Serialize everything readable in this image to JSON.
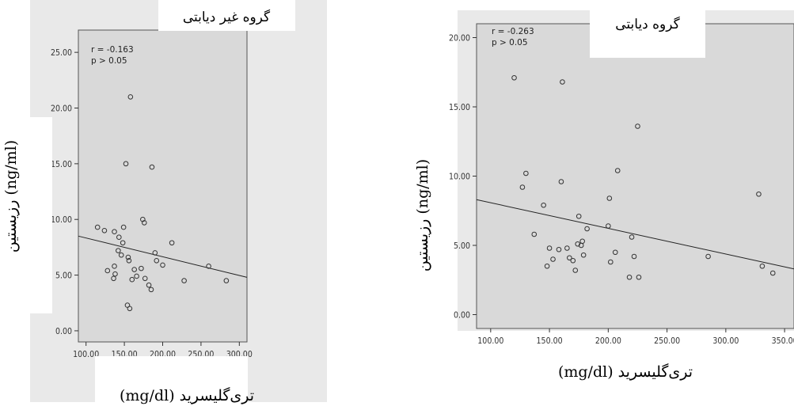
{
  "chart_data": [
    {
      "type": "scatter",
      "title": "گروه غیر دیابتی",
      "xlabel": "تری‌گلیسرید (mg/dl)",
      "ylabel": "رزیستین (ng/ml)",
      "stats": {
        "r": "r = -0.163",
        "p": "p > 0.05"
      },
      "xlim": [
        90,
        310
      ],
      "ylim": [
        -1,
        27
      ],
      "xticks": [
        "100.00",
        "150.00",
        "200.00",
        "250.00",
        "300.00"
      ],
      "yticks": [
        "0.00",
        "5.00",
        "10.00",
        "15.00",
        "20.00",
        "25.00"
      ],
      "xtick_values": [
        100,
        150,
        200,
        250,
        300
      ],
      "ytick_values": [
        0,
        5,
        10,
        15,
        20,
        25
      ],
      "fit_line": {
        "x": [
          90,
          310
        ],
        "y": [
          8.5,
          4.8
        ]
      },
      "points": [
        [
          115,
          9.3
        ],
        [
          124,
          9.0
        ],
        [
          128,
          5.4
        ],
        [
          136,
          4.7
        ],
        [
          137,
          8.9
        ],
        [
          137,
          5.8
        ],
        [
          138,
          5.1
        ],
        [
          142,
          7.2
        ],
        [
          143,
          8.4
        ],
        [
          146,
          6.8
        ],
        [
          148,
          7.9
        ],
        [
          149,
          9.3
        ],
        [
          152,
          15.0
        ],
        [
          154,
          2.3
        ],
        [
          155,
          6.6
        ],
        [
          156,
          6.3
        ],
        [
          157,
          2.0
        ],
        [
          158,
          21.0
        ],
        [
          160,
          4.6
        ],
        [
          163,
          5.5
        ],
        [
          166,
          4.9
        ],
        [
          172,
          5.6
        ],
        [
          174,
          10.0
        ],
        [
          176,
          9.7
        ],
        [
          177,
          4.7
        ],
        [
          182,
          4.1
        ],
        [
          185,
          3.7
        ],
        [
          186,
          14.7
        ],
        [
          190,
          7.0
        ],
        [
          192,
          6.3
        ],
        [
          200,
          5.9
        ],
        [
          212,
          7.9
        ],
        [
          228,
          4.5
        ],
        [
          260,
          5.8
        ],
        [
          283,
          4.5
        ]
      ]
    },
    {
      "type": "scatter",
      "title": "گروه دیابتی",
      "xlabel": "تری‌گلیسرید (mg/dl)",
      "ylabel": "رزیستین (ng/ml)",
      "stats": {
        "r": "r = -0.263",
        "p": "p > 0.05"
      },
      "xlim": [
        88,
        358
      ],
      "ylim": [
        -1,
        21
      ],
      "xticks": [
        "100.00",
        "150.00",
        "200.00",
        "250.00",
        "300.00",
        "350.00"
      ],
      "yticks": [
        "0.00",
        "5.00",
        "10.00",
        "15.00",
        "20.00"
      ],
      "xtick_values": [
        100,
        150,
        200,
        250,
        300,
        350
      ],
      "ytick_values": [
        0,
        5,
        10,
        15,
        20
      ],
      "fit_line": {
        "x": [
          88,
          358
        ],
        "y": [
          8.3,
          3.3
        ]
      },
      "points": [
        [
          120,
          17.1
        ],
        [
          127,
          9.2
        ],
        [
          130,
          10.2
        ],
        [
          137,
          5.8
        ],
        [
          145,
          7.9
        ],
        [
          148,
          3.5
        ],
        [
          150,
          4.8
        ],
        [
          153,
          4.0
        ],
        [
          158,
          4.7
        ],
        [
          160,
          9.6
        ],
        [
          161,
          16.8
        ],
        [
          165,
          4.8
        ],
        [
          167,
          4.1
        ],
        [
          170,
          3.9
        ],
        [
          172,
          3.2
        ],
        [
          174,
          5.1
        ],
        [
          175,
          7.1
        ],
        [
          177,
          5.0
        ],
        [
          178,
          5.3
        ],
        [
          179,
          4.3
        ],
        [
          182,
          6.2
        ],
        [
          200,
          6.4
        ],
        [
          201,
          8.4
        ],
        [
          202,
          3.8
        ],
        [
          206,
          4.5
        ],
        [
          208,
          10.4
        ],
        [
          218,
          2.7
        ],
        [
          220,
          5.6
        ],
        [
          222,
          4.2
        ],
        [
          225,
          13.6
        ],
        [
          226,
          2.7
        ],
        [
          285,
          4.2
        ],
        [
          328,
          8.7
        ],
        [
          331,
          3.5
        ],
        [
          340,
          3.0
        ]
      ]
    }
  ]
}
